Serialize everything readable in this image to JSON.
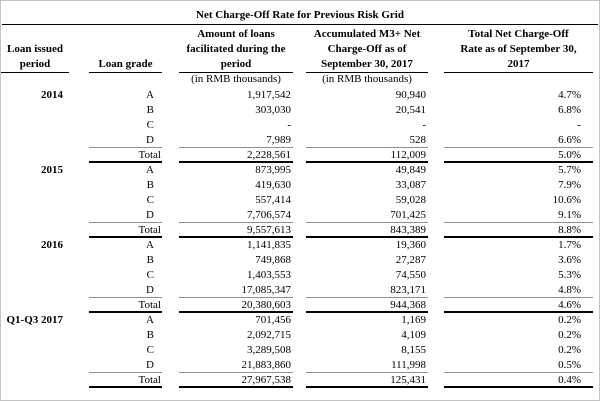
{
  "table": {
    "title": "Net Charge-Off Rate for Previous Risk Grid",
    "headers": {
      "period": {
        "line1": "Loan issued",
        "line2": "period"
      },
      "grade": "Loan grade",
      "amount": {
        "line1": "Amount of loans",
        "line2": "facilitated during the",
        "line3": "period",
        "unit": "(in RMB thousands)"
      },
      "accumulated": {
        "line1": "Accumulated M3+ Net",
        "line2": "Charge-Off as of",
        "line3": "September 30, 2017",
        "unit": "(in RMB thousands)"
      },
      "rate": {
        "line1": "Total Net Charge-Off",
        "line2": "Rate as of September 30,",
        "line3": "2017"
      }
    },
    "total_label": "Total",
    "groups": [
      {
        "period": "2014",
        "rows": [
          {
            "grade": "A",
            "amount": "1,917,542",
            "accumulated": "90,940",
            "rate": "4.7%"
          },
          {
            "grade": "B",
            "amount": "303,030",
            "accumulated": "20,541",
            "rate": "6.8%"
          },
          {
            "grade": "C",
            "amount": "-",
            "accumulated": "-",
            "rate": "-"
          },
          {
            "grade": "D",
            "amount": "7,989",
            "accumulated": "528",
            "rate": "6.6%"
          }
        ],
        "total": {
          "amount": "2,228,561",
          "accumulated": "112,009",
          "rate": "5.0%"
        }
      },
      {
        "period": "2015",
        "rows": [
          {
            "grade": "A",
            "amount": "873,995",
            "accumulated": "49,849",
            "rate": "5.7%"
          },
          {
            "grade": "B",
            "amount": "419,630",
            "accumulated": "33,087",
            "rate": "7.9%"
          },
          {
            "grade": "C",
            "amount": "557,414",
            "accumulated": "59,028",
            "rate": "10.6%"
          },
          {
            "grade": "D",
            "amount": "7,706,574",
            "accumulated": "701,425",
            "rate": "9.1%"
          }
        ],
        "total": {
          "amount": "9,557,613",
          "accumulated": "843,389",
          "rate": "8.8%"
        }
      },
      {
        "period": "2016",
        "rows": [
          {
            "grade": "A",
            "amount": "1,141,835",
            "accumulated": "19,360",
            "rate": "1.7%"
          },
          {
            "grade": "B",
            "amount": "749,868",
            "accumulated": "27,287",
            "rate": "3.6%"
          },
          {
            "grade": "C",
            "amount": "1,403,553",
            "accumulated": "74,550",
            "rate": "5.3%"
          },
          {
            "grade": "D",
            "amount": "17,085,347",
            "accumulated": "823,171",
            "rate": "4.8%"
          }
        ],
        "total": {
          "amount": "20,380,603",
          "accumulated": "944,368",
          "rate": "4.6%"
        }
      },
      {
        "period": "Q1-Q3 2017",
        "rows": [
          {
            "grade": "A",
            "amount": "701,456",
            "accumulated": "1,169",
            "rate": "0.2%"
          },
          {
            "grade": "B",
            "amount": "2,092,715",
            "accumulated": "4,109",
            "rate": "0.2%"
          },
          {
            "grade": "C",
            "amount": "3,289,508",
            "accumulated": "8,155",
            "rate": "0.2%"
          },
          {
            "grade": "D",
            "amount": "21,883,860",
            "accumulated": "111,998",
            "rate": "0.5%"
          }
        ],
        "total": {
          "amount": "27,967,538",
          "accumulated": "125,431",
          "rate": "0.4%"
        }
      }
    ]
  }
}
